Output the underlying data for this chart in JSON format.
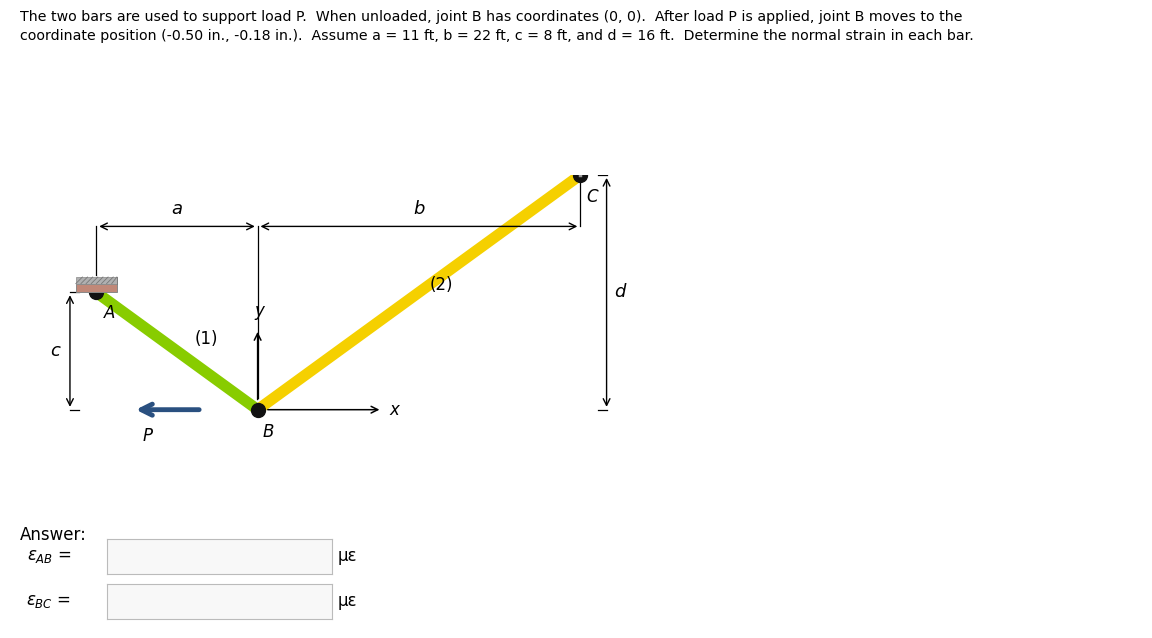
{
  "title_line1": "The two bars are used to support load P.  When unloaded, joint B has coordinates (0, 0).  After load P is applied, joint B moves to the",
  "title_line2": "coordinate position (-0.50 in., -0.18 in.).  Assume α = 11 ft, β = 22 ft, γ = 8 ft, and δ = 16 ft.  Determine the normal strain in each bar.",
  "title_line2_plain": "coordinate position (-0.50 in., -0.18 in.).  Assume a = 11 ft, b = 22 ft, c = 8 ft, and d = 16 ft.  Determine the normal strain in each bar.",
  "bg_color": "#ffffff",
  "bar1_color": "#88cc00",
  "bar2_color": "#f5d000",
  "joint_color": "#111111",
  "answer_label": "Answer:",
  "mu_eps": "με",
  "btn_color": "#1aa0e8",
  "input_bg": "#f8f8f8",
  "A": [
    -11,
    8
  ],
  "B": [
    0,
    0
  ],
  "C": [
    22,
    16
  ],
  "wall_color": "#c08878",
  "hatch_color": "#888888"
}
